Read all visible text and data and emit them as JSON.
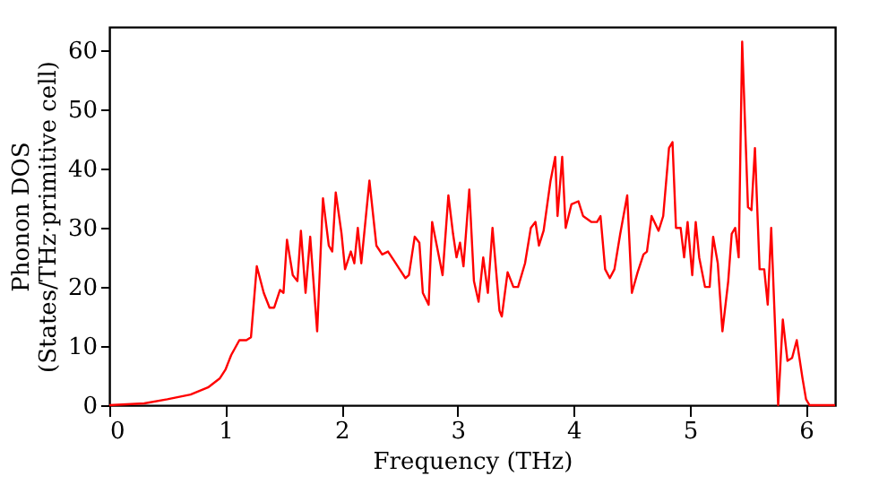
{
  "chart_data": {
    "type": "line",
    "xlabel": "Frequency (THz)",
    "ylabel": "Phonon DOS\n(States/THz·primitive cell)",
    "xlim": [
      0,
      6.25
    ],
    "ylim": [
      0,
      64
    ],
    "xticks": [
      0,
      1,
      2,
      3,
      4,
      5,
      6
    ],
    "yticks": [
      0,
      10,
      20,
      30,
      40,
      50,
      60
    ],
    "grid": false,
    "marker": "none",
    "line_style": "solid",
    "series": [
      {
        "color": "#ff0000",
        "x": [
          0,
          0.3,
          0.5,
          0.7,
          0.85,
          0.95,
          1.0,
          1.05,
          1.12,
          1.18,
          1.22,
          1.27,
          1.33,
          1.38,
          1.42,
          1.47,
          1.5,
          1.53,
          1.58,
          1.62,
          1.65,
          1.69,
          1.73,
          1.79,
          1.84,
          1.89,
          1.92,
          1.95,
          2.0,
          2.03,
          2.08,
          2.11,
          2.14,
          2.17,
          2.24,
          2.3,
          2.35,
          2.4,
          2.45,
          2.5,
          2.55,
          2.58,
          2.63,
          2.67,
          2.7,
          2.75,
          2.78,
          2.83,
          2.87,
          2.92,
          2.96,
          2.99,
          3.02,
          3.05,
          3.1,
          3.14,
          3.18,
          3.22,
          3.26,
          3.3,
          3.36,
          3.38,
          3.43,
          3.48,
          3.52,
          3.58,
          3.63,
          3.67,
          3.7,
          3.74,
          3.8,
          3.84,
          3.86,
          3.9,
          3.93,
          3.98,
          4.04,
          4.08,
          4.15,
          4.2,
          4.23,
          4.27,
          4.31,
          4.35,
          4.4,
          4.46,
          4.5,
          4.55,
          4.6,
          4.63,
          4.67,
          4.73,
          4.77,
          4.82,
          4.85,
          4.88,
          4.92,
          4.95,
          4.98,
          5.02,
          5.05,
          5.08,
          5.13,
          5.17,
          5.2,
          5.24,
          5.28,
          5.33,
          5.36,
          5.39,
          5.42,
          5.45,
          5.5,
          5.53,
          5.56,
          5.6,
          5.64,
          5.67,
          5.7,
          5.76,
          5.8,
          5.84,
          5.88,
          5.92,
          5.97,
          6.0,
          6.03,
          6.25
        ],
        "values": [
          0,
          0.3,
          1,
          1.8,
          3,
          4.5,
          6,
          8.5,
          11,
          11,
          11.5,
          23.5,
          19,
          16.5,
          16.5,
          19.5,
          19,
          28,
          22,
          21,
          29.5,
          19,
          28.5,
          12.5,
          35,
          27,
          26,
          36,
          29,
          23,
          26,
          24,
          30,
          24,
          38,
          27,
          25.5,
          26,
          24.5,
          23,
          21.5,
          22,
          28.5,
          27.5,
          19,
          17,
          31,
          26,
          22,
          35.5,
          29,
          25,
          27.5,
          23.5,
          36.5,
          21,
          17.5,
          25,
          19,
          30,
          16,
          15,
          22.5,
          20,
          20,
          24,
          30,
          31,
          27,
          29.5,
          38,
          42,
          32,
          42,
          30,
          34,
          34.5,
          32,
          31,
          31,
          32,
          23,
          21.5,
          23,
          29,
          35.5,
          19,
          22.5,
          25.5,
          26,
          32,
          29.5,
          32,
          43.5,
          44.5,
          30,
          30,
          25,
          31,
          22,
          31,
          25,
          20,
          20,
          28.5,
          24,
          12.5,
          21,
          29,
          30,
          25,
          61.5,
          33.5,
          33,
          43.5,
          23,
          23,
          17,
          30,
          0,
          14.5,
          7.5,
          8,
          11,
          4.5,
          1,
          0,
          0
        ]
      }
    ]
  }
}
